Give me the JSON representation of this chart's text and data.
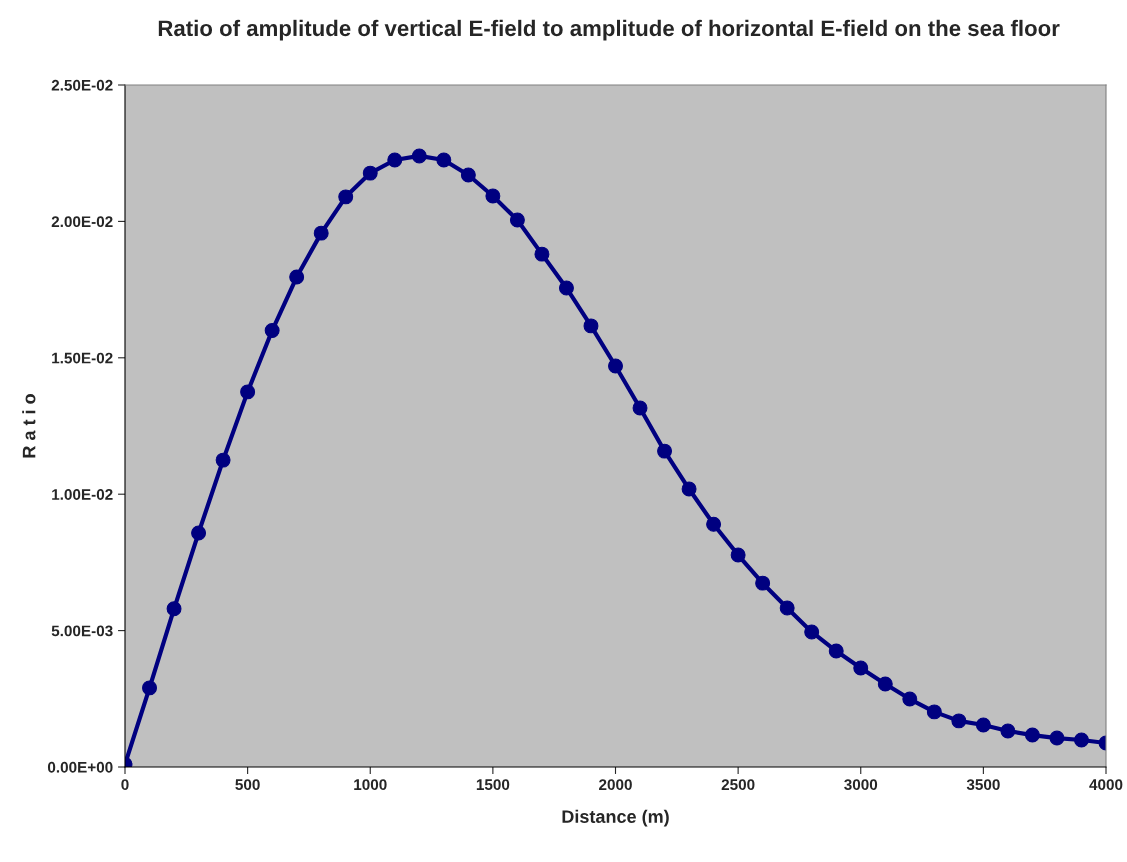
{
  "chart_data": {
    "type": "line",
    "title": "Ratio of amplitude of vertical E-field to amplitude of horizontal E-field on the sea floor",
    "xlabel": "Distance (m)",
    "ylabel": "R a t i o",
    "x": [
      0,
      100,
      200,
      300,
      400,
      500,
      600,
      700,
      800,
      900,
      1000,
      1100,
      1200,
      1300,
      1400,
      1500,
      1600,
      1700,
      1800,
      1900,
      2000,
      2100,
      2200,
      2300,
      2400,
      2500,
      2600,
      2700,
      2800,
      2900,
      3000,
      3100,
      3200,
      3300,
      3400,
      3500,
      3600,
      3700,
      3800,
      3900,
      4000
    ],
    "series": [
      {
        "color": "#000080",
        "values": [
          0.0001,
          0.0029,
          0.0058,
          0.00858,
          0.01125,
          0.01375,
          0.016,
          0.01796,
          0.01957,
          0.0209,
          0.02177,
          0.02225,
          0.0224,
          0.02225,
          0.0217,
          0.02093,
          0.02005,
          0.0188,
          0.01756,
          0.01617,
          0.0147,
          0.01316,
          0.01158,
          0.01019,
          0.0089,
          0.00777,
          0.00674,
          0.00583,
          0.00495,
          0.00425,
          0.00363,
          0.00304,
          0.00249,
          0.00202,
          0.00169,
          0.00154,
          0.00132,
          0.00117,
          0.00106,
          0.00099,
          0.00088
        ]
      }
    ],
    "xlim": [
      0,
      4000
    ],
    "xticks": [
      0,
      500,
      1000,
      1500,
      2000,
      2500,
      3000,
      3500,
      4000
    ],
    "ylim": [
      0,
      0.025
    ],
    "yticks": [
      {
        "value": 0,
        "label": "0.00E+00"
      },
      {
        "value": 0.005,
        "label": "5.00E-03"
      },
      {
        "value": 0.01,
        "label": "1.00E-02"
      },
      {
        "value": 0.015,
        "label": "1.50E-02"
      },
      {
        "value": 0.02,
        "label": "2.00E-02"
      },
      {
        "value": 0.025,
        "label": "2.50E-02"
      }
    ],
    "marker": "circle",
    "line_style": "solid",
    "grid": false
  }
}
